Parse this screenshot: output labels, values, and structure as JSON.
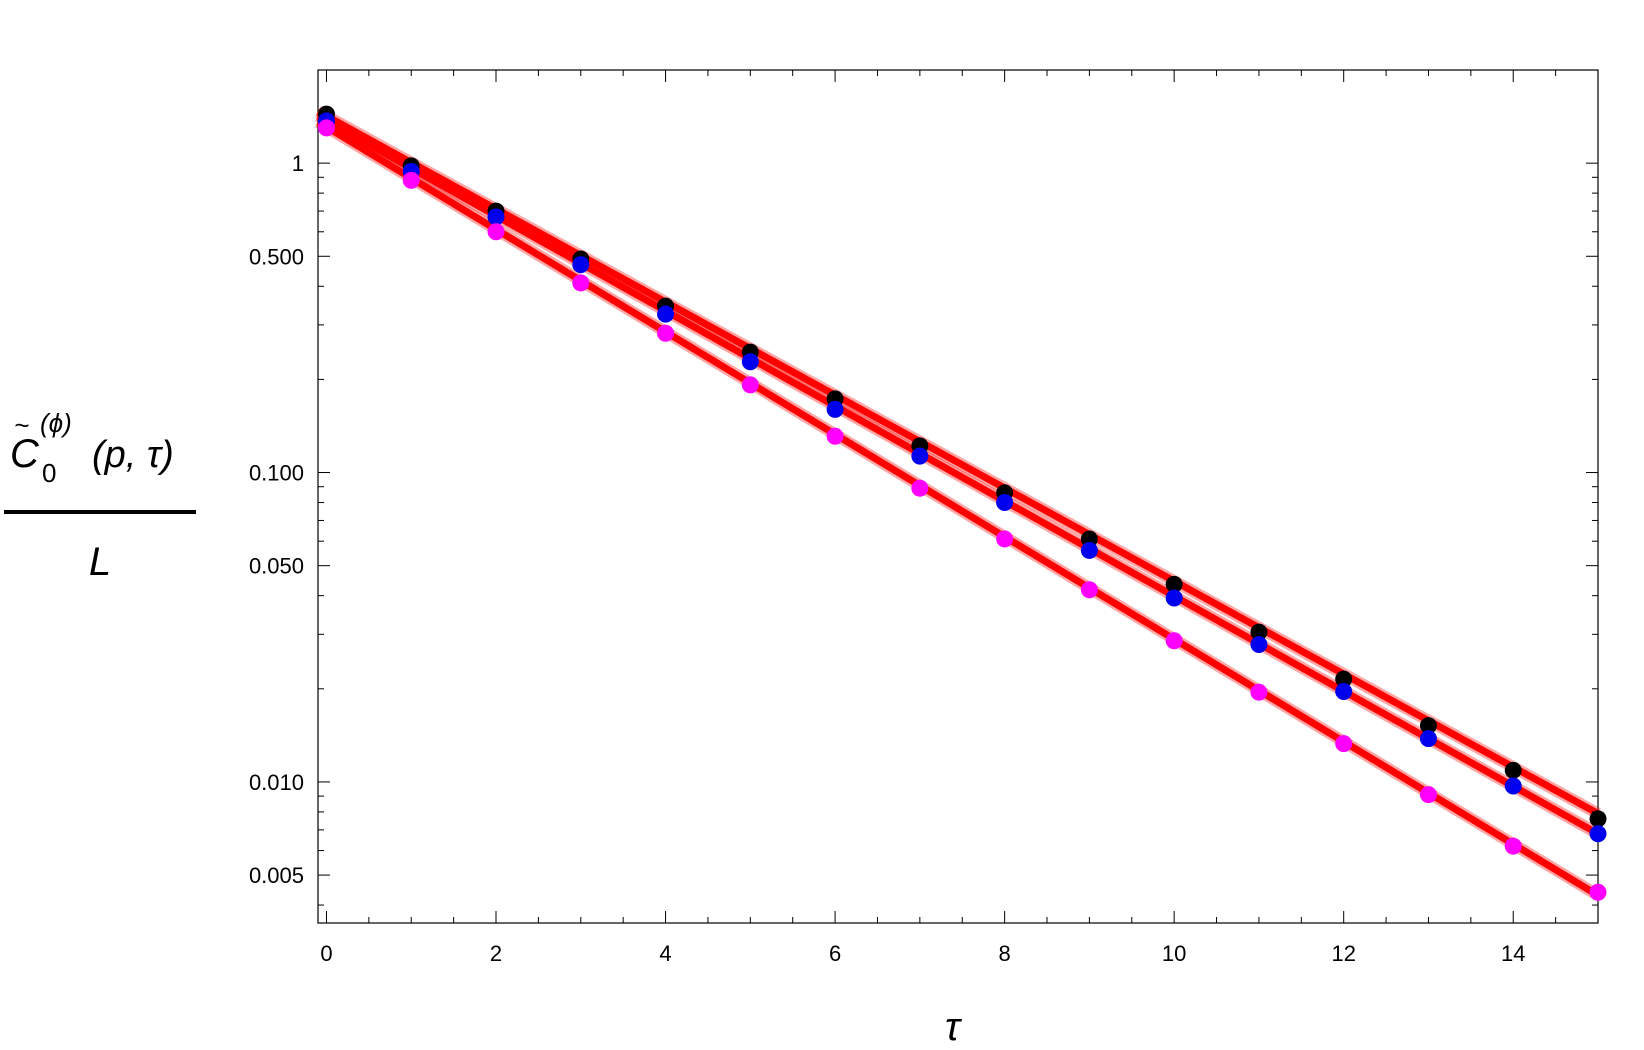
{
  "chart_data": {
    "type": "scatter",
    "title": "",
    "xlabel": "τ",
    "ylabel": {
      "tilde": "~",
      "symbol": "C",
      "subscript": "0",
      "superscript": "(ϕ)",
      "args": "(p, τ)",
      "denominator": "L"
    },
    "yscale": "log",
    "xlim": [
      -0.1,
      15
    ],
    "ylim": [
      0.0035,
      2.0
    ],
    "grid": false,
    "legend": "none",
    "x_ticks": [
      0,
      2,
      4,
      6,
      8,
      10,
      12,
      14
    ],
    "x_tick_labels": [
      "0",
      "2",
      "4",
      "6",
      "8",
      "10",
      "12",
      "14"
    ],
    "y_ticks": [
      1,
      0.5,
      0.1,
      0.05,
      0.01,
      0.005
    ],
    "y_tick_labels": [
      "1",
      "0.500",
      "0.100",
      "0.050",
      "0.010",
      "0.005"
    ],
    "x": [
      0,
      1,
      2,
      3,
      4,
      5,
      6,
      7,
      8,
      9,
      10,
      11,
      12,
      13,
      14,
      15
    ],
    "series": [
      {
        "color": "#000000",
        "values": [
          1.44,
          0.98,
          0.7,
          0.49,
          0.345,
          0.245,
          0.173,
          0.122,
          0.086,
          0.061,
          0.0435,
          0.0305,
          0.0215,
          0.0152,
          0.0109,
          0.0076
        ]
      },
      {
        "color": "#0000ee",
        "values": [
          1.37,
          0.94,
          0.67,
          0.47,
          0.325,
          0.228,
          0.16,
          0.113,
          0.08,
          0.056,
          0.0393,
          0.0278,
          0.0196,
          0.0138,
          0.0097,
          0.0068
        ]
      },
      {
        "color": "#ff00ff",
        "values": [
          1.3,
          0.88,
          0.6,
          0.41,
          0.282,
          0.192,
          0.131,
          0.089,
          0.061,
          0.0418,
          0.0286,
          0.0195,
          0.0133,
          0.0091,
          0.0062,
          0.0044
        ]
      }
    ],
    "fits": [
      {
        "color": "#ff0000",
        "values_at_xlim": [
          1.47,
          0.0079
        ]
      },
      {
        "color": "#ff0000",
        "values_at_xlim": [
          1.42,
          0.0068
        ]
      },
      {
        "color": "#ff0000",
        "values_at_xlim": [
          1.36,
          0.0043
        ]
      }
    ]
  }
}
